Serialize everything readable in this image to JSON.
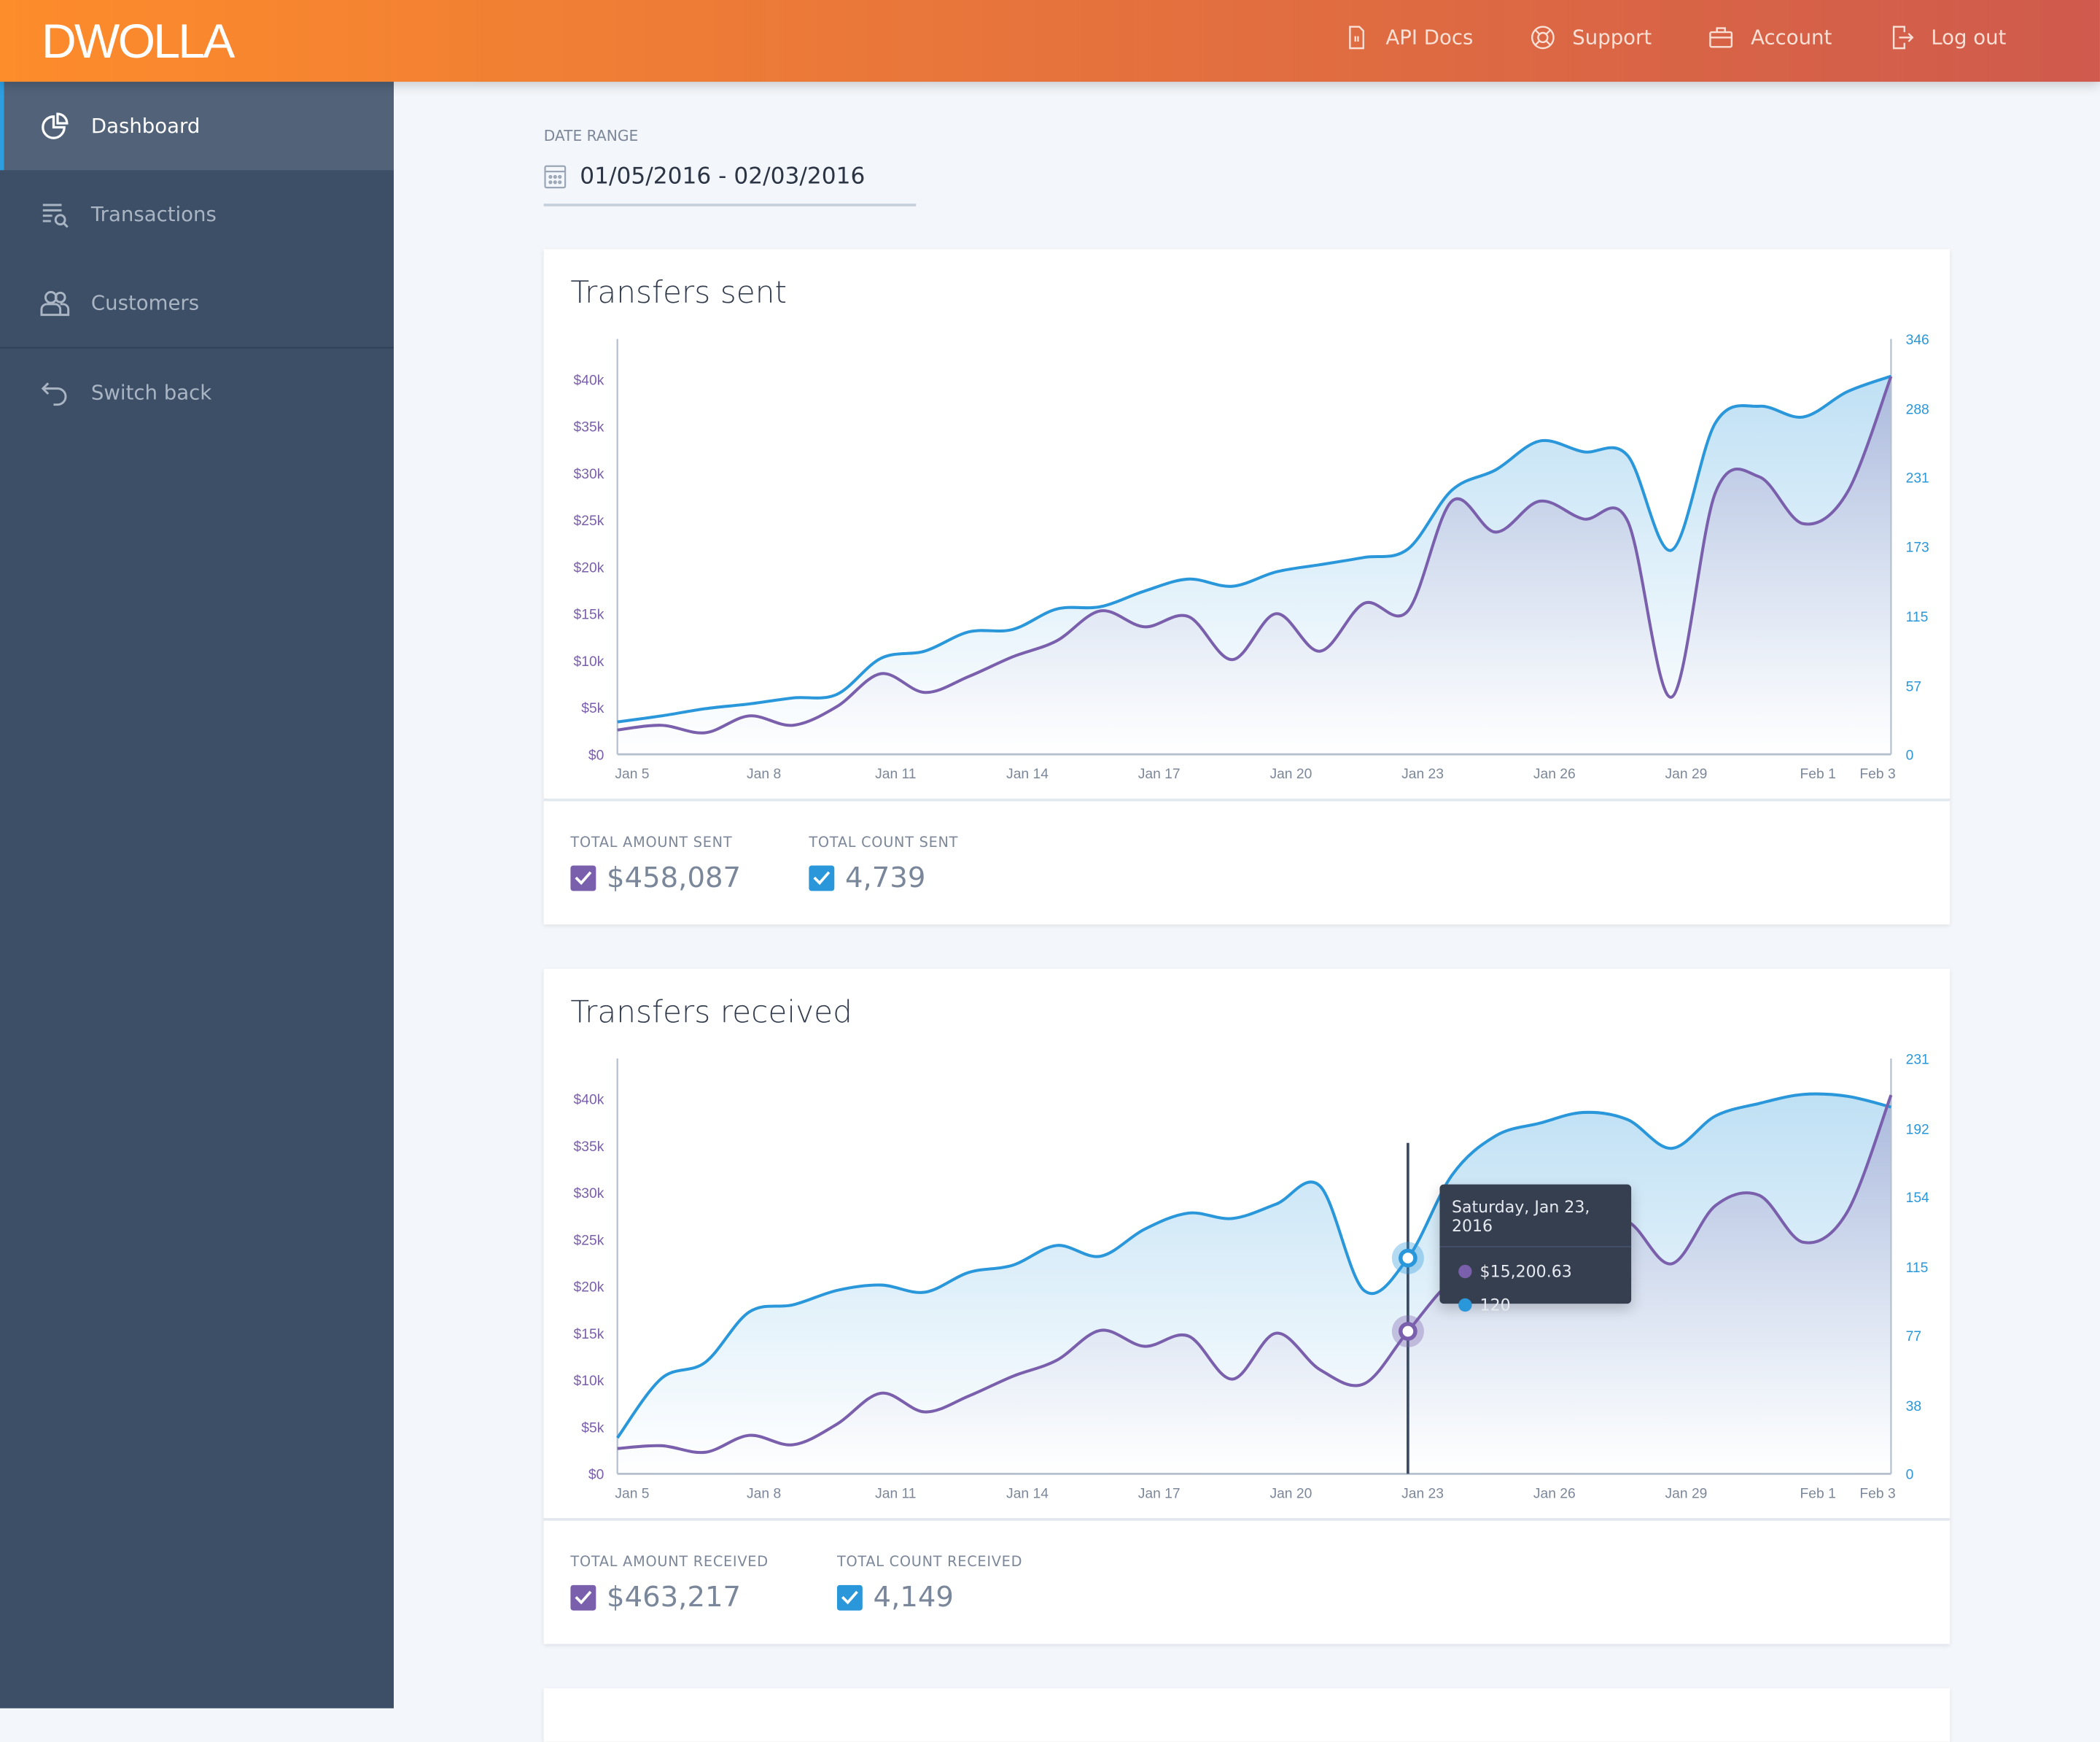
{
  "header": {
    "logo": "DWOLLA",
    "nav": [
      {
        "label": "API Docs",
        "icon": "document-icon"
      },
      {
        "label": "Support",
        "icon": "lifebuoy-icon"
      },
      {
        "label": "Account",
        "icon": "briefcase-icon"
      },
      {
        "label": "Log out",
        "icon": "logout-icon"
      }
    ]
  },
  "sidebar": {
    "items": [
      {
        "label": "Dashboard",
        "icon": "pie-chart-icon",
        "active": true
      },
      {
        "label": "Transactions",
        "icon": "list-search-icon"
      },
      {
        "label": "Customers",
        "icon": "users-icon"
      },
      {
        "label": "Switch back",
        "icon": "undo-arrow-icon"
      }
    ]
  },
  "date_range": {
    "label": "DATE RANGE",
    "value": "01/05/2016 - 02/03/2016"
  },
  "colors": {
    "amount": "#7a5fac",
    "count": "#2a97da",
    "tooltip_bg": "#363f50"
  },
  "cards": [
    {
      "title": "Transfers sent",
      "stats": [
        {
          "label": "TOTAL AMOUNT SENT",
          "value": "$458,087",
          "checked": true
        },
        {
          "label": "TOTAL COUNT SENT",
          "value": "4,739",
          "checked": true
        }
      ]
    },
    {
      "title": "Transfers received",
      "stats": [
        {
          "label": "TOTAL AMOUNT RECEIVED",
          "value": "$463,217",
          "checked": true
        },
        {
          "label": "TOTAL COUNT RECEIVED",
          "value": "4,149",
          "checked": true
        }
      ]
    }
  ],
  "tooltip": {
    "date": "Saturday, Jan 23, 2016",
    "amount": "$15,200.63",
    "count": "120"
  },
  "chart_data": [
    {
      "type": "area",
      "title": "Transfers sent",
      "x": [
        "Jan 5",
        "Jan 6",
        "Jan 7",
        "Jan 8",
        "Jan 9",
        "Jan 10",
        "Jan 11",
        "Jan 12",
        "Jan 13",
        "Jan 14",
        "Jan 15",
        "Jan 16",
        "Jan 17",
        "Jan 18",
        "Jan 19",
        "Jan 20",
        "Jan 21",
        "Jan 22",
        "Jan 23",
        "Jan 24",
        "Jan 25",
        "Jan 26",
        "Jan 27",
        "Jan 28",
        "Jan 29",
        "Jan 30",
        "Jan 31",
        "Feb 1",
        "Feb 2",
        "Feb 3"
      ],
      "x_ticks": [
        "Jan 5",
        "Jan 8",
        "Jan 11",
        "Jan 14",
        "Jan 17",
        "Jan 20",
        "Jan 23",
        "Jan 26",
        "Jan 29",
        "Feb 1",
        "Feb 3"
      ],
      "left_axis": {
        "ticks": [
          "$0",
          "$5k",
          "$10k",
          "$15k",
          "$20k",
          "$25k",
          "$30k",
          "$35k",
          "$40k"
        ],
        "range": [
          0,
          44300
        ]
      },
      "right_axis": {
        "ticks": [
          "0",
          "57",
          "115",
          "173",
          "231",
          "288",
          "346"
        ],
        "range": [
          0,
          346
        ]
      },
      "series": [
        {
          "axis": "left",
          "values": [
            2600,
            3100,
            2300,
            4100,
            3100,
            5100,
            8600,
            6600,
            8300,
            10400,
            12100,
            15300,
            13600,
            14700,
            10100,
            15000,
            11000,
            16100,
            15300,
            27000,
            23700,
            27000,
            25100,
            24900,
            6100,
            27900,
            29600,
            24600,
            27900,
            40300
          ]
        },
        {
          "axis": "right",
          "values": [
            27,
            32,
            38,
            42,
            47,
            50,
            80,
            86,
            102,
            104,
            121,
            123,
            136,
            146,
            140,
            152,
            158,
            164,
            171,
            220,
            237,
            261,
            252,
            249,
            170,
            276,
            290,
            281,
            302,
            315
          ]
        }
      ]
    },
    {
      "type": "area",
      "title": "Transfers received",
      "x": [
        "Jan 5",
        "Jan 6",
        "Jan 7",
        "Jan 8",
        "Jan 9",
        "Jan 10",
        "Jan 11",
        "Jan 12",
        "Jan 13",
        "Jan 14",
        "Jan 15",
        "Jan 16",
        "Jan 17",
        "Jan 18",
        "Jan 19",
        "Jan 20",
        "Jan 21",
        "Jan 22",
        "Jan 23",
        "Jan 24",
        "Jan 25",
        "Jan 26",
        "Jan 27",
        "Jan 28",
        "Jan 29",
        "Jan 30",
        "Jan 31",
        "Feb 1",
        "Feb 2",
        "Feb 3"
      ],
      "x_ticks": [
        "Jan 5",
        "Jan 8",
        "Jan 11",
        "Jan 14",
        "Jan 17",
        "Jan 20",
        "Jan 23",
        "Jan 26",
        "Jan 29",
        "Feb 1",
        "Feb 3"
      ],
      "left_axis": {
        "ticks": [
          "$0",
          "$5k",
          "$10k",
          "$15k",
          "$20k",
          "$25k",
          "$30k",
          "$35k",
          "$40k"
        ],
        "range": [
          0,
          44300
        ]
      },
      "right_axis": {
        "ticks": [
          "0",
          "38",
          "77",
          "115",
          "154",
          "192",
          "231"
        ],
        "range": [
          0,
          231
        ]
      },
      "highlight": "Jan 23",
      "series": [
        {
          "axis": "left",
          "values": [
            2700,
            3000,
            2300,
            4100,
            3100,
            5300,
            8600,
            6600,
            8300,
            10400,
            12100,
            15300,
            13600,
            14700,
            10100,
            15000,
            11100,
            9600,
            15200,
            20600,
            22600,
            25700,
            26000,
            26900,
            22400,
            28600,
            29700,
            24700,
            27900,
            40400
          ]
        },
        {
          "axis": "right",
          "values": [
            20,
            53,
            62,
            90,
            94,
            102,
            105,
            101,
            112,
            116,
            127,
            121,
            136,
            145,
            142,
            150,
            160,
            102,
            120,
            166,
            188,
            195,
            201,
            197,
            181,
            199,
            206,
            211,
            210,
            204
          ]
        }
      ]
    }
  ]
}
